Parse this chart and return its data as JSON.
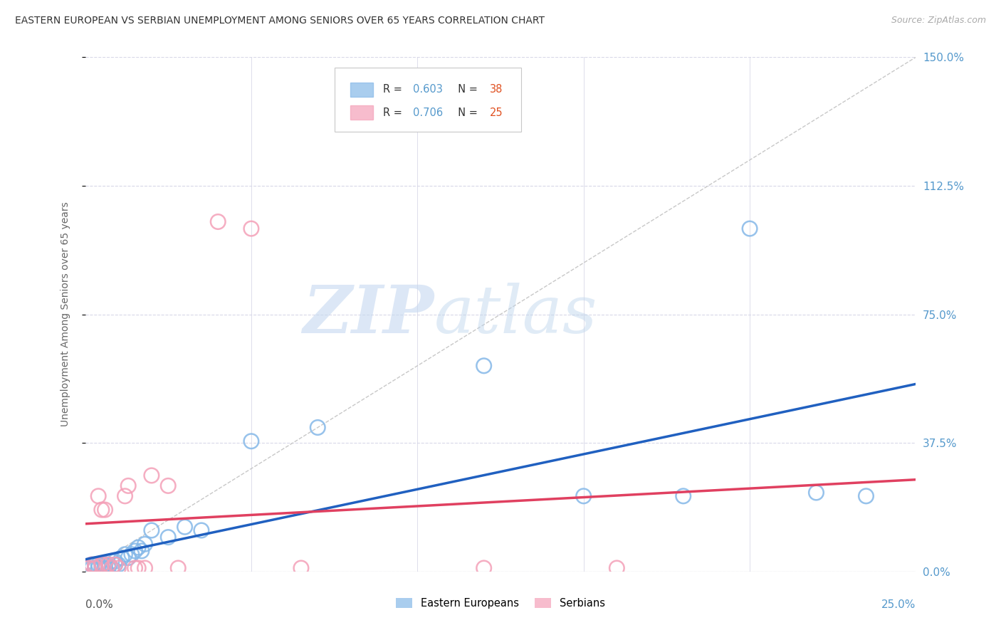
{
  "title": "EASTERN EUROPEAN VS SERBIAN UNEMPLOYMENT AMONG SENIORS OVER 65 YEARS CORRELATION CHART",
  "source": "Source: ZipAtlas.com",
  "ylabel": "Unemployment Among Seniors over 65 years",
  "y_ticks": [
    0.0,
    0.375,
    0.75,
    1.125,
    1.5
  ],
  "y_tick_labels": [
    "0.0%",
    "37.5%",
    "75.0%",
    "112.5%",
    "150.0%"
  ],
  "x_min": 0.0,
  "x_max": 0.25,
  "y_min": 0.0,
  "y_max": 1.5,
  "legend_label1": "Eastern Europeans",
  "legend_label2": "Serbians",
  "R_blue": "0.603",
  "N_blue": "38",
  "R_pink": "0.706",
  "N_pink": "25",
  "blue_color": "#85b8e8",
  "pink_color": "#f4a0b8",
  "blue_line_color": "#2060c0",
  "pink_line_color": "#e04060",
  "diag_line_color": "#c8c8c8",
  "background_color": "#ffffff",
  "grid_color": "#d8d8e8",
  "watermark_zip": "ZIP",
  "watermark_atlas": "atlas",
  "title_color": "#333333",
  "source_color": "#aaaaaa",
  "ylabel_color": "#666666",
  "ytick_color": "#5599cc",
  "xtick_left_color": "#555555",
  "xtick_right_color": "#5599cc",
  "legend_text_color": "#333333",
  "legend_r_val_color": "#5599cc",
  "legend_n_val_color": "#e05020",
  "blue_scatter_x": [
    0.001,
    0.002,
    0.002,
    0.003,
    0.003,
    0.004,
    0.004,
    0.005,
    0.005,
    0.006,
    0.006,
    0.007,
    0.007,
    0.008,
    0.008,
    0.009,
    0.009,
    0.01,
    0.011,
    0.012,
    0.013,
    0.014,
    0.015,
    0.016,
    0.017,
    0.018,
    0.02,
    0.025,
    0.03,
    0.035,
    0.05,
    0.07,
    0.12,
    0.15,
    0.18,
    0.2,
    0.22,
    0.235
  ],
  "blue_scatter_y": [
    0.01,
    0.01,
    0.02,
    0.01,
    0.02,
    0.01,
    0.02,
    0.01,
    0.02,
    0.01,
    0.02,
    0.01,
    0.02,
    0.01,
    0.03,
    0.02,
    0.03,
    0.02,
    0.04,
    0.05,
    0.04,
    0.05,
    0.06,
    0.07,
    0.06,
    0.08,
    0.12,
    0.1,
    0.13,
    0.12,
    0.38,
    0.42,
    0.6,
    0.22,
    0.22,
    1.0,
    0.23,
    0.22
  ],
  "pink_scatter_x": [
    0.001,
    0.002,
    0.003,
    0.003,
    0.004,
    0.005,
    0.005,
    0.006,
    0.007,
    0.008,
    0.009,
    0.01,
    0.012,
    0.013,
    0.015,
    0.016,
    0.018,
    0.02,
    0.025,
    0.028,
    0.04,
    0.05,
    0.065,
    0.12,
    0.16
  ],
  "pink_scatter_y": [
    0.01,
    0.02,
    0.01,
    0.02,
    0.22,
    0.18,
    0.02,
    0.18,
    0.02,
    0.01,
    0.02,
    0.01,
    0.22,
    0.25,
    0.01,
    0.01,
    0.01,
    0.28,
    0.25,
    0.01,
    1.02,
    1.0,
    0.01,
    0.01,
    0.01
  ]
}
